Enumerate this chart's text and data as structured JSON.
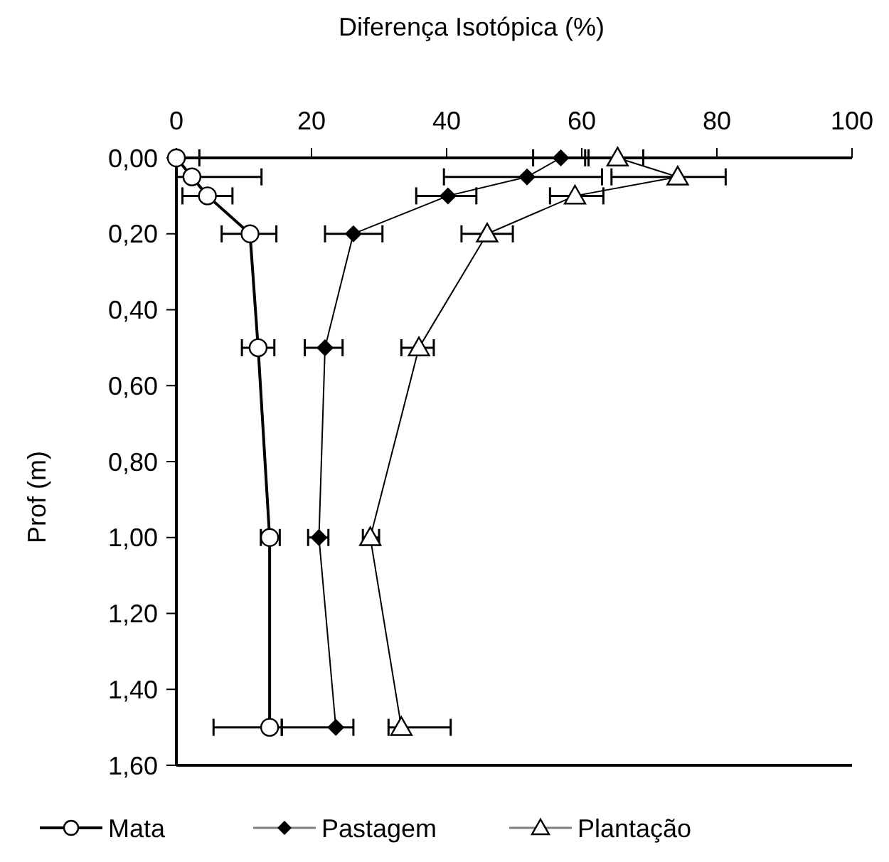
{
  "chart_data": {
    "type": "line",
    "xlabel": "Diferença Isotópica (%)",
    "ylabel": "Prof (m)",
    "xlim": [
      0,
      100
    ],
    "xticks": [
      0,
      20,
      40,
      60,
      80,
      100
    ],
    "ylim": [
      1.6,
      0
    ],
    "yticks": [
      {
        "value": 0,
        "label": "0,00"
      },
      {
        "value": 0.2,
        "label": "0,20"
      },
      {
        "value": 0.4,
        "label": "0,40"
      },
      {
        "value": 0.6,
        "label": "0,60"
      },
      {
        "value": 0.8,
        "label": "0,80"
      },
      {
        "value": 1,
        "label": "1,00"
      },
      {
        "value": 1.2,
        "label": "1,20"
      },
      {
        "value": 1.4,
        "label": "1,40"
      },
      {
        "value": 1.6,
        "label": "1,60"
      }
    ],
    "grid": false,
    "legend": "bottom",
    "series": [
      {
        "name": "Mata",
        "color": "#000000",
        "marker": "circle",
        "x": [
          0,
          2.3,
          4.6,
          10.9,
          12.1,
          13.8,
          13.8
        ],
        "values": [
          0,
          0.05,
          0.1,
          0.2,
          0.5,
          1,
          1.5
        ],
        "xerrors": [
          [
            0,
            3.4
          ],
          [
            0,
            12.6
          ],
          [
            0.9,
            8.3
          ],
          [
            6.7,
            14.8
          ],
          [
            9.7,
            14.5
          ],
          [
            12.5,
            15.3
          ],
          [
            5.5,
            15.6
          ]
        ]
      },
      {
        "name": "Pastagem",
        "color": "#000000",
        "marker": "diamond",
        "x": [
          56.9,
          51.9,
          40.2,
          26.2,
          22,
          21.1,
          23.6
        ],
        "values": [
          0,
          0.05,
          0.1,
          0.2,
          0.5,
          1,
          1.5
        ],
        "xerrors": [
          [
            52.8,
            61
          ],
          [
            39.6,
            63
          ],
          [
            35.5,
            44.4
          ],
          [
            22,
            30.5
          ],
          [
            19,
            24.6
          ],
          [
            19.5,
            22.5
          ],
          [
            15.6,
            26.2
          ]
        ]
      },
      {
        "name": "Plantação",
        "color": "#000000",
        "marker": "triangle",
        "x": [
          65.3,
          74.2,
          59,
          46,
          35.9,
          28.7,
          33.3
        ],
        "values": [
          0,
          0.05,
          0.1,
          0.2,
          0.5,
          1,
          1.5
        ],
        "xerrors": [
          [
            60.5,
            69.1
          ],
          [
            64.4,
            81.3
          ],
          [
            55.3,
            63.2
          ],
          [
            42.2,
            49.8
          ],
          [
            33.3,
            38.1
          ],
          [
            27.6,
            30
          ],
          [
            31.4,
            40.6
          ]
        ]
      }
    ]
  }
}
